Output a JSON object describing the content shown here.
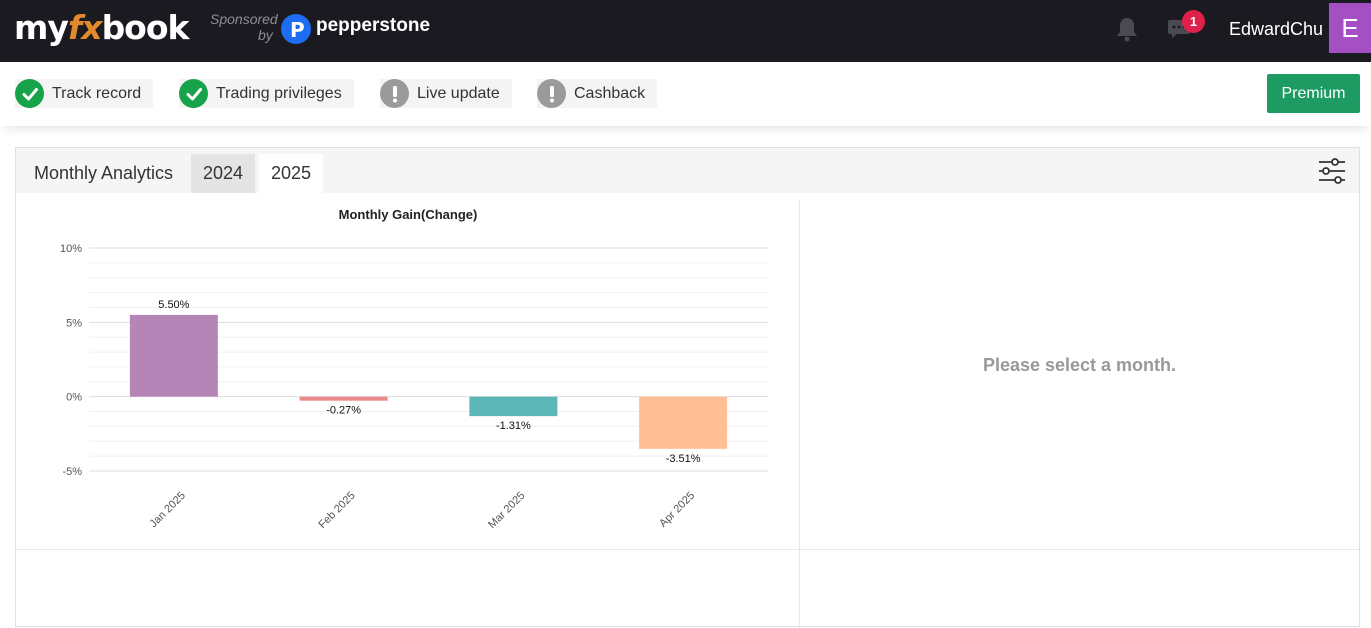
{
  "brand": {
    "logo_pre": "my",
    "logo_fx": "fx",
    "logo_post": "book",
    "sponsored": "Sponsored",
    "sponsored_by": "by",
    "sponsor_name": "pepperstone"
  },
  "header": {
    "notification_count": "1",
    "username": "EdwardChu",
    "avatar_initial": "E"
  },
  "status": [
    {
      "label": "Track record",
      "state": "ok"
    },
    {
      "label": "Trading privileges",
      "state": "ok"
    },
    {
      "label": "Live update",
      "state": "warn"
    },
    {
      "label": "Cashback",
      "state": "warn"
    }
  ],
  "premium_label": "Premium",
  "panel": {
    "title": "Monthly Analytics",
    "tabs": [
      "2024",
      "2025"
    ],
    "active_tab": "2025",
    "select_month_msg": "Please select a month."
  },
  "colors": {
    "topbar": "#1b1a20",
    "accent_green": "#1e9b63",
    "avatar": "#a44fc4",
    "badge": "#e0204a"
  },
  "chart_data": {
    "type": "bar",
    "title": "Monthly Gain(Change)",
    "categories": [
      "Jan 2025",
      "Feb 2025",
      "Mar 2025",
      "Apr 2025"
    ],
    "values": [
      5.5,
      -0.27,
      -1.31,
      -3.51
    ],
    "value_labels": [
      "5.50%",
      "-0.27%",
      "-1.31%",
      "-3.51%"
    ],
    "colors": [
      "#b585b8",
      "#e88a8a",
      "#5bb8b6",
      "#ffbf96"
    ],
    "ylim": [
      -5,
      10
    ],
    "yticks": [
      10,
      5,
      0,
      -5
    ],
    "ytick_labels": [
      "10%",
      "5%",
      "0%",
      "-5%"
    ],
    "grid": true
  }
}
